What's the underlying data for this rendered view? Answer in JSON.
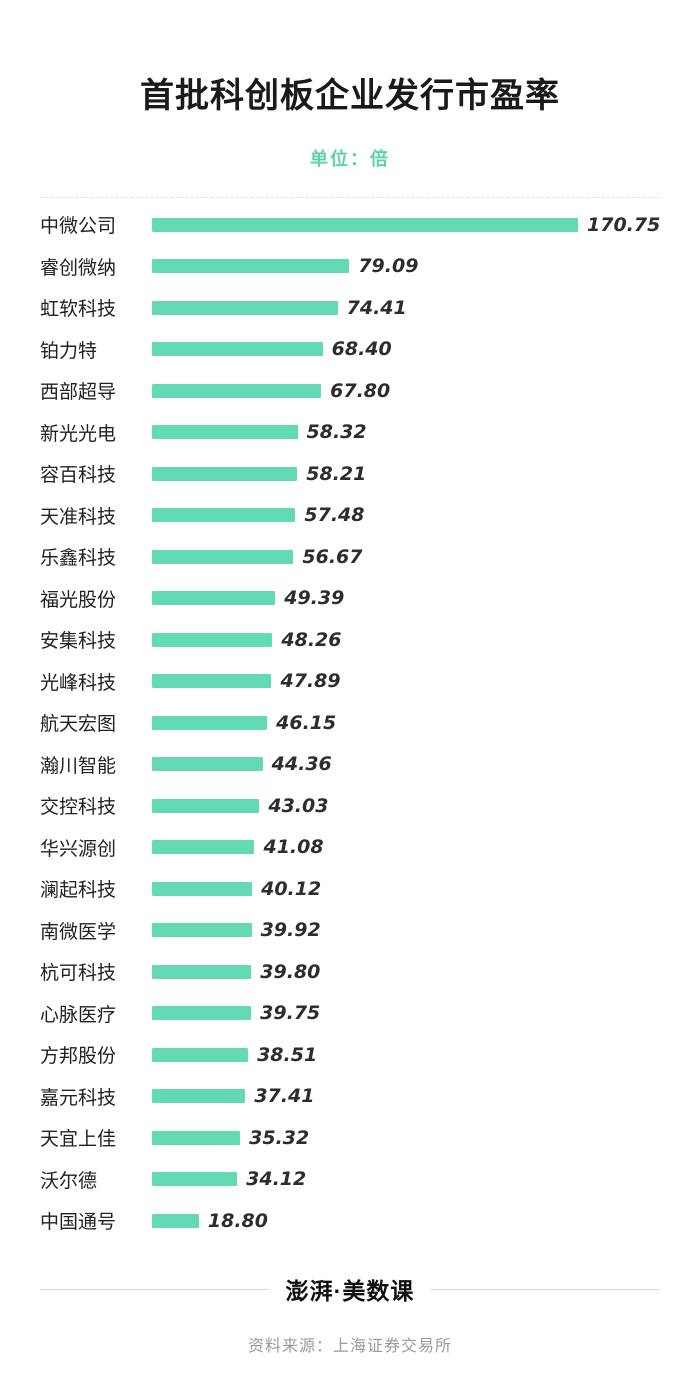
{
  "header": {
    "title": "首批科创板企业发行市盈率",
    "subtitle": "单位：倍"
  },
  "chart_data": {
    "type": "bar",
    "orientation": "horizontal",
    "title": "首批科创板企业发行市盈率",
    "unit_label": "单位：倍",
    "categories": [
      "中微公司",
      "睿创微纳",
      "虹软科技",
      "铂力特",
      "西部超导",
      "新光光电",
      "容百科技",
      "天准科技",
      "乐鑫科技",
      "福光股份",
      "安集科技",
      "光峰科技",
      "航天宏图",
      "瀚川智能",
      "交控科技",
      "华兴源创",
      "澜起科技",
      "南微医学",
      "杭可科技",
      "心脉医疗",
      "方邦股份",
      "嘉元科技",
      "天宜上佳",
      "沃尔德",
      "中国通号"
    ],
    "values": [
      170.75,
      79.09,
      74.41,
      68.4,
      67.8,
      58.32,
      58.21,
      57.48,
      56.67,
      49.39,
      48.26,
      47.89,
      46.15,
      44.36,
      43.03,
      41.08,
      40.12,
      39.92,
      39.8,
      39.75,
      38.51,
      37.41,
      35.32,
      34.12,
      18.8
    ],
    "value_labels": [
      "170.75",
      "79.09",
      "74.41",
      "68.40",
      "67.80",
      "58.32",
      "58.21",
      "57.48",
      "56.67",
      "49.39",
      "48.26",
      "47.89",
      "46.15",
      "44.36",
      "43.03",
      "41.08",
      "40.12",
      "39.92",
      "39.80",
      "39.75",
      "38.51",
      "37.41",
      "35.32",
      "34.12",
      "18.80"
    ],
    "xlim": [
      0,
      170.75
    ],
    "bar_color": "#63d9b4",
    "legend": "none",
    "grid": "off"
  },
  "footer": {
    "logo": "澎湃·美数课",
    "source": "资料来源：上海证券交易所"
  },
  "colors": {
    "bar": "#63d9b4",
    "subtitle": "#5ed2ac",
    "title_text": "#1a1a1a",
    "value_text": "#2d2d2d",
    "source_text": "#9b9b9b"
  }
}
